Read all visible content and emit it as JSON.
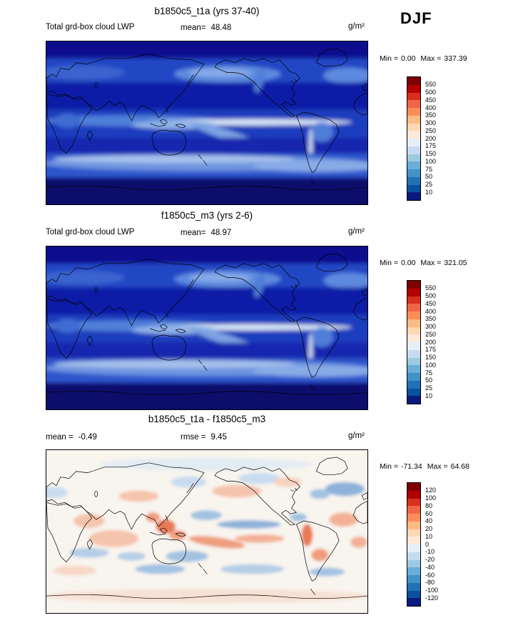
{
  "season": "DJF",
  "panels": [
    {
      "title": "b1850c5_t1a (yrs 37-40)",
      "var_label": "Total grd-box cloud LWP",
      "mean_label": "mean=",
      "mean_value": "48.48",
      "units": "g/m²",
      "min_label": "Min =",
      "min_value": "0.00",
      "max_label": "Max =",
      "max_value": "337.39",
      "colorbar": {
        "labels": [
          "550",
          "500",
          "450",
          "400",
          "350",
          "300",
          "250",
          "200",
          "175",
          "150",
          "100",
          "75",
          "50",
          "25",
          "10"
        ],
        "colors": [
          "#7f0000",
          "#b30000",
          "#d7301f",
          "#ef6548",
          "#fc8d59",
          "#fdbb84",
          "#fdd8b3",
          "#fee8d8",
          "#e6eef8",
          "#c6dbef",
          "#9ecae1",
          "#6baed6",
          "#4292c6",
          "#2171b5",
          "#0a50a0",
          "#0a1a7e"
        ]
      }
    },
    {
      "title": "f1850c5_m3 (yrs 2-6)",
      "var_label": "Total grd-box cloud LWP",
      "mean_label": "mean=",
      "mean_value": "48.97",
      "units": "g/m²",
      "min_label": "Min =",
      "min_value": "0.00",
      "max_label": "Max =",
      "max_value": "321.05",
      "colorbar": {
        "labels": [
          "550",
          "500",
          "450",
          "400",
          "350",
          "300",
          "250",
          "200",
          "175",
          "150",
          "100",
          "75",
          "50",
          "25",
          "10"
        ],
        "colors": [
          "#7f0000",
          "#b30000",
          "#d7301f",
          "#ef6548",
          "#fc8d59",
          "#fdbb84",
          "#fdd8b3",
          "#fee8d8",
          "#e6eef8",
          "#c6dbef",
          "#9ecae1",
          "#6baed6",
          "#4292c6",
          "#2171b5",
          "#0a50a0",
          "#0a1a7e"
        ]
      }
    },
    {
      "title": "b1850c5_t1a - f1850c5_m3",
      "mean_label": "mean =",
      "mean_value": "-0.49",
      "rmse_label": "rmse =",
      "rmse_value": "9.45",
      "units": "g/m²",
      "min_label": "Min =",
      "min_value": "-71.34",
      "max_label": "Max =",
      "max_value": "64.68",
      "colorbar": {
        "labels": [
          "120",
          "100",
          "80",
          "60",
          "40",
          "20",
          "10",
          "0",
          "-10",
          "-20",
          "-40",
          "-60",
          "-80",
          "-100",
          "-120"
        ],
        "colors": [
          "#7f0000",
          "#b30000",
          "#d7301f",
          "#ef6548",
          "#fc8d59",
          "#fdbb84",
          "#fdd8b3",
          "#fee8d8",
          "#e6eef8",
          "#c6dbef",
          "#9ecae1",
          "#6baed6",
          "#4292c6",
          "#2171b5",
          "#0a50a0",
          "#0a1a7e"
        ]
      }
    }
  ],
  "chart_data": [
    {
      "type": "heatmap",
      "subtype": "global-latlon-contour-map",
      "title": "b1850c5_t1a (yrs 37-40)",
      "variable": "Total grd-box cloud LWP",
      "season": "DJF",
      "units": "g/m2",
      "mean": 48.48,
      "min": 0.0,
      "max": 337.39,
      "contour_levels": [
        10,
        25,
        50,
        75,
        100,
        150,
        175,
        200,
        250,
        300,
        350,
        400,
        450,
        500,
        550
      ],
      "legend_position": "right"
    },
    {
      "type": "heatmap",
      "subtype": "global-latlon-contour-map",
      "title": "f1850c5_m3 (yrs 2-6)",
      "variable": "Total grd-box cloud LWP",
      "season": "DJF",
      "units": "g/m2",
      "mean": 48.97,
      "min": 0.0,
      "max": 321.05,
      "contour_levels": [
        10,
        25,
        50,
        75,
        100,
        150,
        175,
        200,
        250,
        300,
        350,
        400,
        450,
        500,
        550
      ],
      "legend_position": "right"
    },
    {
      "type": "heatmap",
      "subtype": "global-latlon-difference-map",
      "title": "b1850c5_t1a - f1850c5_m3",
      "season": "DJF",
      "units": "g/m2",
      "mean": -0.49,
      "rmse": 9.45,
      "min": -71.34,
      "max": 64.68,
      "contour_levels": [
        -120,
        -100,
        -80,
        -60,
        -40,
        -20,
        -10,
        0,
        10,
        20,
        40,
        60,
        80,
        100,
        120
      ],
      "legend_position": "right"
    }
  ]
}
